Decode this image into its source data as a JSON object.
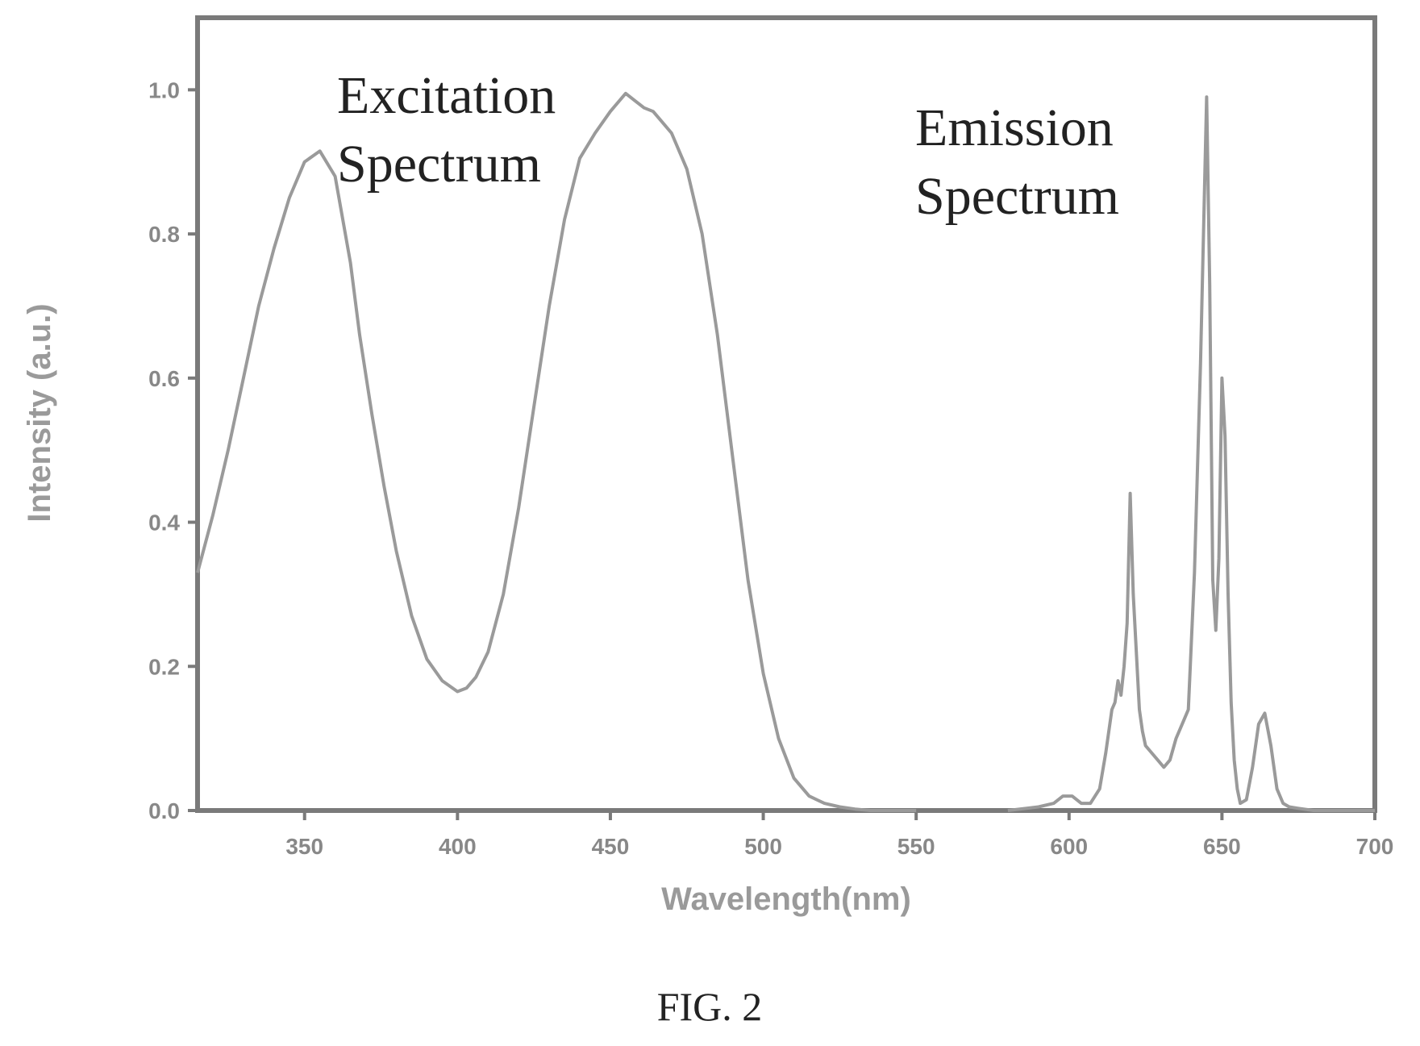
{
  "figure": {
    "caption": "FIG. 2"
  },
  "chart_data": {
    "type": "line",
    "title": "",
    "xlabel": "Wavelength(nm)",
    "ylabel": "Intensity (a.u.)",
    "xlim": [
      315,
      700
    ],
    "ylim": [
      0,
      1.1
    ],
    "xticks": [
      350,
      400,
      450,
      500,
      550,
      600,
      650,
      700
    ],
    "xtick_labels": [
      "350",
      "400",
      "450",
      "500",
      "550",
      "600",
      "650",
      "700"
    ],
    "yticks": [
      0.0,
      0.2,
      0.4,
      0.6,
      0.8,
      1.0
    ],
    "ytick_labels": [
      "0.0",
      "0.2",
      "0.4",
      "0.6",
      "0.8",
      "1.0"
    ],
    "grid": false,
    "line_color": "#9a9a9a",
    "frame_color": "#7a7a7a",
    "annotations": [
      {
        "text": "Excitation",
        "series": "excitation"
      },
      {
        "text": "Spectrum",
        "series": "excitation"
      },
      {
        "text": "Emission",
        "series": "emission"
      },
      {
        "text": "Spectrum",
        "series": "emission"
      }
    ],
    "series": [
      {
        "key": "excitation",
        "x": [
          315,
          320,
          325,
          330,
          335,
          340,
          345,
          350,
          355,
          360,
          365,
          368,
          372,
          376,
          380,
          385,
          390,
          395,
          400,
          403,
          406,
          410,
          415,
          420,
          425,
          430,
          435,
          440,
          445,
          450,
          455,
          458,
          461,
          464,
          467,
          470,
          475,
          480,
          485,
          490,
          495,
          500,
          505,
          510,
          515,
          520,
          525,
          530,
          535,
          540,
          545,
          550
        ],
        "y": [
          0.33,
          0.41,
          0.5,
          0.6,
          0.7,
          0.78,
          0.85,
          0.9,
          0.915,
          0.88,
          0.76,
          0.66,
          0.55,
          0.45,
          0.36,
          0.27,
          0.21,
          0.18,
          0.165,
          0.17,
          0.185,
          0.22,
          0.3,
          0.42,
          0.56,
          0.7,
          0.82,
          0.905,
          0.94,
          0.97,
          0.995,
          0.985,
          0.975,
          0.97,
          0.955,
          0.94,
          0.89,
          0.8,
          0.66,
          0.49,
          0.32,
          0.19,
          0.1,
          0.045,
          0.02,
          0.01,
          0.005,
          0.002,
          0.0,
          0.0,
          0.0,
          0.0
        ]
      },
      {
        "key": "emission",
        "x": [
          580,
          590,
          595,
          598,
          601,
          604,
          607,
          610,
          612,
          614,
          615,
          616,
          617,
          618,
          619,
          620,
          621,
          622,
          623,
          624,
          625,
          627,
          629,
          631,
          633,
          635,
          637,
          639,
          641,
          643,
          645,
          646,
          647,
          648,
          649,
          650,
          651,
          652,
          653,
          654,
          655,
          656,
          658,
          660,
          662,
          664,
          666,
          668,
          670,
          672,
          675,
          680,
          690,
          700
        ],
        "y": [
          0.0,
          0.005,
          0.01,
          0.02,
          0.02,
          0.01,
          0.01,
          0.03,
          0.08,
          0.14,
          0.15,
          0.18,
          0.16,
          0.2,
          0.26,
          0.44,
          0.3,
          0.22,
          0.14,
          0.11,
          0.09,
          0.08,
          0.07,
          0.06,
          0.07,
          0.1,
          0.12,
          0.14,
          0.33,
          0.62,
          0.99,
          0.73,
          0.32,
          0.25,
          0.35,
          0.6,
          0.52,
          0.3,
          0.15,
          0.07,
          0.03,
          0.01,
          0.015,
          0.06,
          0.12,
          0.135,
          0.09,
          0.03,
          0.01,
          0.005,
          0.003,
          0.0,
          0.0,
          0.0
        ]
      }
    ]
  }
}
